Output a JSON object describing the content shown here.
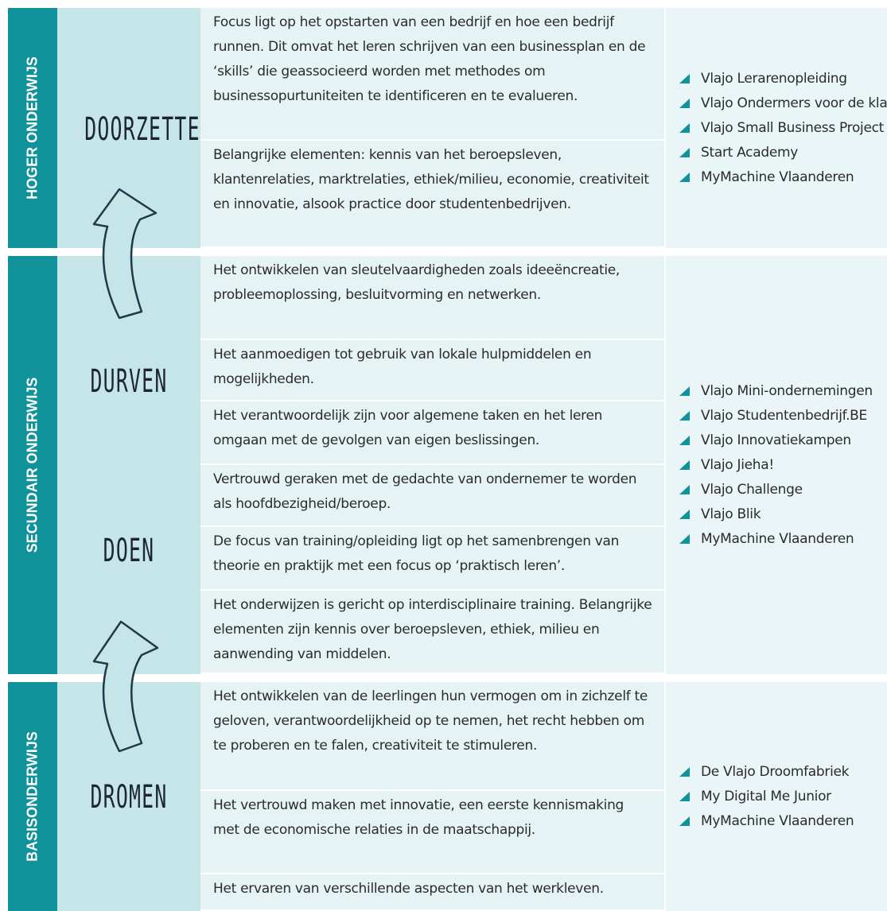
{
  "sections": [
    {
      "level": "HOGER ONDERWIJS",
      "stages": [
        "DOORZETTEN"
      ],
      "descriptions": [
        "Focus ligt op het opstarten van een bedrijf en hoe een bedrijf runnen. Dit omvat het leren schrijven van een businessplan en de ‘skills’ die geassocieerd worden met methodes om businessopurtuniteiten te identificeren en te evalueren.",
        "Belangrijke elementen: kennis van het beroepsleven, klantenrelaties, marktrelaties, ethiek/milieu, economie, creativiteit en innovatie, alsook practice door studentenbedrijven."
      ],
      "programs": [
        "Vlajo Lerarenopleiding",
        "Vlajo Ondermers voor de klas",
        "Vlajo Small Business Project",
        "Start Academy",
        "MyMachine Vlaanderen"
      ]
    },
    {
      "level": "SECUNDAIR ONDERWIJS",
      "stages": [
        "DURVEN",
        "DOEN"
      ],
      "descriptions": [
        "Het ontwikkelen van sleutelvaardigheden zoals ideeëncreatie, probleemoplossing, besluitvorming en netwerken.",
        "Het aanmoedigen tot gebruik van lokale hulpmiddelen en mogelijkheden.",
        "Het verantwoordelijk zijn voor algemene taken en het leren omgaan met de gevolgen van eigen beslissingen.",
        "Vertrouwd geraken met de gedachte van ondernemer te worden als hoofdbezigheid/beroep.",
        "De focus van training/opleiding ligt op het samenbrengen van theorie en praktijk met een focus op ‘praktisch leren’.",
        "Het onderwijzen is gericht op interdisciplinaire training. Belangrijke elementen zijn kennis over beroepsleven, ethiek, milieu en aanwending van middelen."
      ],
      "programs": [
        "Vlajo Mini-ondernemingen",
        "Vlajo Studentenbedrijf.BE",
        "Vlajo Innovatiekampen",
        "Vlajo Jieha!",
        "Vlajo Challenge",
        "Vlajo Blik",
        "MyMachine Vlaanderen"
      ]
    },
    {
      "level": "BASISONDERWIJS",
      "stages": [
        "DROMEN"
      ],
      "descriptions": [
        "Het ontwikkelen van de leerlingen hun vermogen om in zichzelf te geloven, verantwoordelijkheid op te nemen, het recht hebben om te proberen en te falen, creativiteit te stimuleren.",
        "Het vertrouwd maken met innovatie, een eerste kennismaking met de economische relaties in de maatschappij.",
        "Het ervaren van verschillende aspecten van het werkleven."
      ],
      "programs": [
        "De Vlajo Droomfabriek",
        "My Digital Me Junior",
        "MyMachine Vlaanderen"
      ]
    }
  ]
}
